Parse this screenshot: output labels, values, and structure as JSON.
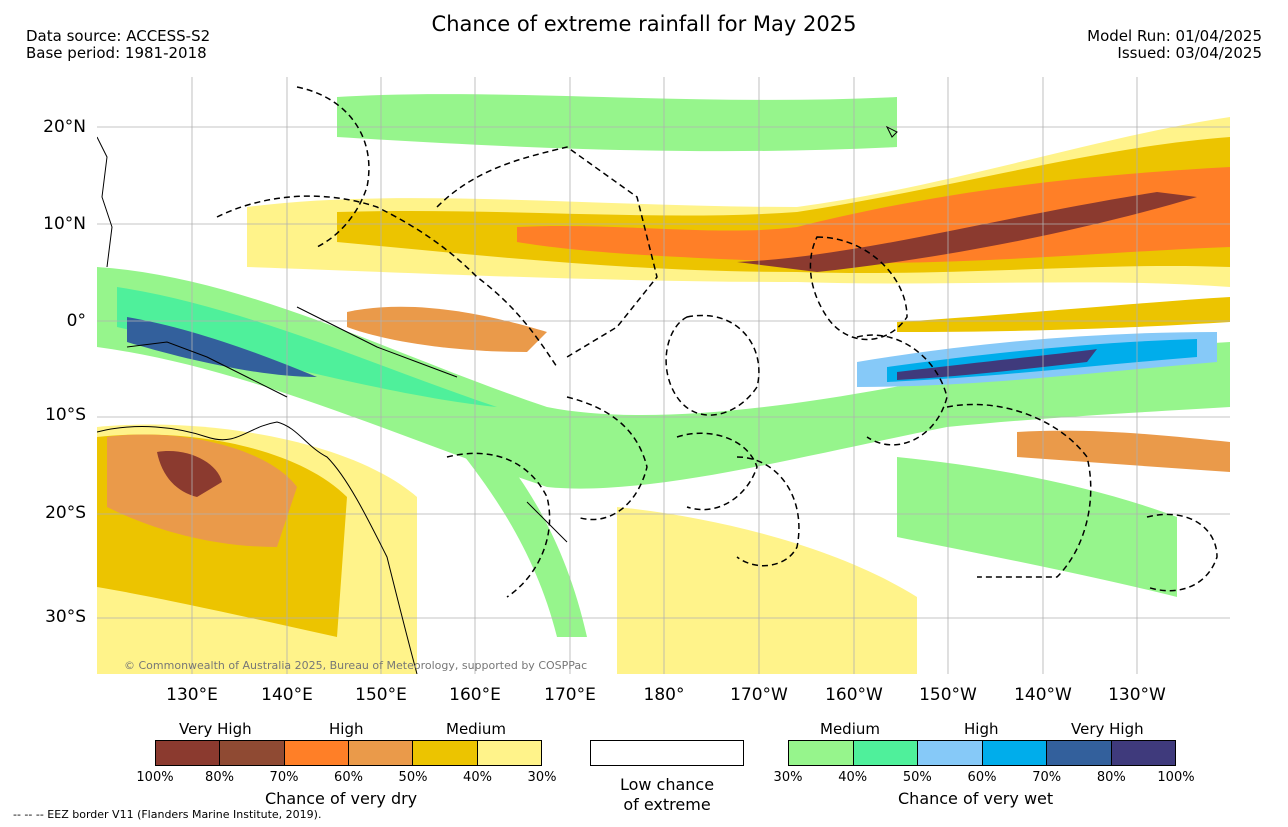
{
  "header": {
    "title": "Chance of extreme rainfall for May 2025",
    "data_source": "Data source: ACCESS-S2",
    "base_period": "Base period: 1981-2018",
    "model_run": "Model Run: 01/04/2025",
    "issued": "Issued: 03/04/2025"
  },
  "map": {
    "copyright": "© Commonwealth of Australia 2025, Bureau of Meteorology, supported by COSPPac",
    "lat_labels": [
      "20°N",
      "10°N",
      "0°",
      "10°S",
      "20°S",
      "30°S"
    ],
    "lon_labels": [
      "130°E",
      "140°E",
      "150°E",
      "160°E",
      "170°E",
      "180°",
      "170°W",
      "160°W",
      "150°W",
      "140°W",
      "130°W"
    ]
  },
  "legend": {
    "dry": {
      "categories": [
        "Very High",
        "High",
        "Medium"
      ],
      "ticks": [
        "100%",
        "80%",
        "70%",
        "60%",
        "50%",
        "40%",
        "30%"
      ],
      "colors": [
        "#8b3a2f",
        "#8f4a33",
        "#ff7f27",
        "#ea9a4a",
        "#ecc400",
        "#fff38a"
      ],
      "caption": "Chance of very dry"
    },
    "low": {
      "line1": "Low chance",
      "line2": "of extreme"
    },
    "wet": {
      "categories": [
        "Medium",
        "High",
        "Very High"
      ],
      "ticks": [
        "30%",
        "40%",
        "50%",
        "60%",
        "70%",
        "80%",
        "100%"
      ],
      "colors": [
        "#96f58c",
        "#4ff09b",
        "#86c9f8",
        "#00adeb",
        "#33609c",
        "#3f3a7c"
      ],
      "caption": "Chance of very wet"
    },
    "eez_note": "-- -- -- EEZ border V11 (Flanders Marine Institute, 2019)."
  }
}
